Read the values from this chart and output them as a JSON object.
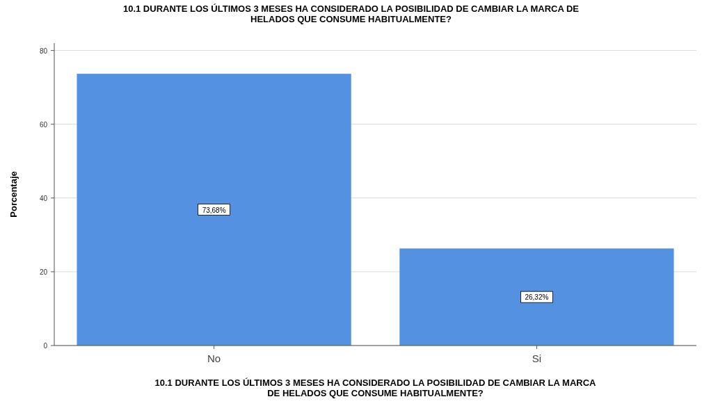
{
  "chart_data": {
    "type": "bar",
    "title": "10.1 DURANTE LOS ÚLTIMOS 3 MESES HA CONSIDERADO LA POSIBILIDAD DE CAMBIAR LA MARCA DE HELADOS QUE CONSUME  HABITUALMENTE?",
    "xlabel": "10.1 DURANTE LOS ÚLTIMOS 3 MESES HA CONSIDERADO LA POSIBILIDAD DE CAMBIAR LA MARCA DE  HELADOS QUE CONSUME  HABITUALMENTE?",
    "ylabel": "Porcentaje",
    "categories": [
      "No",
      "Si"
    ],
    "values": [
      73.68,
      26.32
    ],
    "value_labels": [
      "73,68%",
      "26,32%"
    ],
    "color": "#5591e1",
    "ylim": [
      0,
      82
    ],
    "yticks": [
      0,
      20,
      40,
      60,
      80
    ],
    "grid": "y"
  }
}
